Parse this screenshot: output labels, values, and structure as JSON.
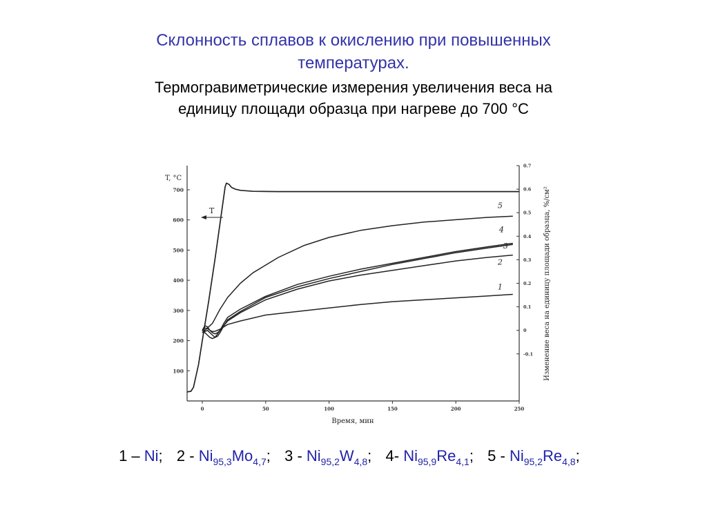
{
  "title": {
    "line1": "Склонность сплавов к окислению при повышенных",
    "line2": "температурах."
  },
  "subtitle": {
    "line1": "Термогравиметрические измерения увеличения веса на",
    "line2": "единицу площади образца при нагреве до 700 °С"
  },
  "chart_data": {
    "type": "line",
    "xlabel": "Время, мин",
    "ylabel_left": "T, °C",
    "ylabel_right": "Изменение веса на единицу площади образца, %/см²",
    "xlim": [
      -12,
      250
    ],
    "ylim_left": [
      0,
      780
    ],
    "ylim_right": [
      -0.3,
      0.7
    ],
    "x_ticks": [
      "0",
      "50",
      "100",
      "150",
      "200",
      "250"
    ],
    "y_left_ticks": [
      "100",
      "200",
      "300",
      "400",
      "500",
      "600",
      "700"
    ],
    "y_right_ticks": [
      "-0.1",
      "0",
      "0.1",
      "0.2",
      "0.3",
      "0.4",
      "0.5",
      "0.6",
      "0.7"
    ],
    "grid": false,
    "temperature_label": "T",
    "temperature": {
      "axis": "left",
      "x": [
        -12,
        -9,
        -7,
        -3,
        0,
        5,
        10,
        15,
        18,
        19,
        21,
        23,
        26,
        30,
        40,
        60,
        100,
        150,
        200,
        250
      ],
      "y": [
        30,
        32,
        45,
        120,
        200,
        330,
        470,
        620,
        710,
        722,
        718,
        708,
        702,
        698,
        695,
        694,
        694,
        694,
        694,
        694
      ]
    },
    "series": [
      {
        "name": "1",
        "axis": "right",
        "x": [
          0,
          2,
          4,
          6,
          8,
          10,
          14,
          20,
          30,
          50,
          75,
          100,
          125,
          150,
          175,
          200,
          225,
          245
        ],
        "y": [
          0.0,
          0.01,
          0.008,
          0.0,
          -0.005,
          -0.004,
          0.005,
          0.025,
          0.04,
          0.065,
          0.08,
          0.095,
          0.11,
          0.122,
          0.13,
          0.138,
          0.146,
          0.153
        ]
      },
      {
        "name": "2",
        "axis": "right",
        "x": [
          0,
          2,
          4,
          6,
          8,
          10,
          12,
          14,
          17,
          20,
          30,
          50,
          75,
          100,
          125,
          150,
          175,
          200,
          225,
          245
        ],
        "y": [
          0.0,
          0.02,
          0.015,
          0.0,
          -0.01,
          -0.015,
          -0.01,
          0.0,
          0.02,
          0.04,
          0.075,
          0.13,
          0.175,
          0.21,
          0.235,
          0.255,
          0.275,
          0.295,
          0.31,
          0.32
        ]
      },
      {
        "name": "3",
        "axis": "right",
        "x": [
          0,
          2,
          4,
          6,
          8,
          10,
          12,
          14,
          17,
          20,
          30,
          50,
          75,
          100,
          125,
          150,
          175,
          200,
          225,
          245
        ],
        "y": [
          -0.01,
          -0.005,
          0.0,
          -0.01,
          -0.02,
          -0.03,
          -0.025,
          -0.01,
          0.02,
          0.045,
          0.08,
          0.14,
          0.185,
          0.22,
          0.25,
          0.28,
          0.305,
          0.33,
          0.35,
          0.365
        ]
      },
      {
        "name": "4",
        "axis": "right",
        "x": [
          0,
          2,
          4,
          6,
          8,
          10,
          12,
          14,
          17,
          20,
          30,
          50,
          75,
          100,
          125,
          150,
          175,
          200,
          225,
          245
        ],
        "y": [
          0.0,
          -0.01,
          -0.02,
          -0.03,
          -0.035,
          -0.03,
          -0.015,
          0.0,
          0.03,
          0.055,
          0.09,
          0.145,
          0.195,
          0.23,
          0.26,
          0.285,
          0.31,
          0.335,
          0.355,
          0.37
        ]
      },
      {
        "name": "5",
        "axis": "right",
        "x": [
          0,
          2,
          4,
          6,
          8,
          10,
          14,
          20,
          30,
          40,
          60,
          80,
          100,
          125,
          150,
          175,
          200,
          225,
          245
        ],
        "y": [
          -0.01,
          0.0,
          0.01,
          0.02,
          0.03,
          0.05,
          0.09,
          0.14,
          0.2,
          0.245,
          0.31,
          0.36,
          0.395,
          0.425,
          0.445,
          0.46,
          0.47,
          0.48,
          0.485
        ]
      }
    ]
  },
  "legend": {
    "items": [
      {
        "prefix": "1 – ",
        "alloy": "Ni",
        "parts": []
      },
      {
        "prefix": "2 - ",
        "alloy": "",
        "parts": [
          [
            "Ni",
            "95,3"
          ],
          [
            "Mo",
            "4,7"
          ]
        ]
      },
      {
        "prefix": "3 -  ",
        "alloy": "",
        "parts": [
          [
            "Ni",
            "95,2"
          ],
          [
            "W",
            "4,8"
          ]
        ]
      },
      {
        "prefix": "4- ",
        "alloy": "",
        "parts": [
          [
            "Ni",
            "95,9"
          ],
          [
            "Re",
            "4,1"
          ]
        ]
      },
      {
        "prefix": "5 - ",
        "alloy": "",
        "parts": [
          [
            "Ni",
            "95,2"
          ],
          [
            "Re",
            "4,8"
          ]
        ]
      }
    ],
    "separator": ";"
  },
  "colors": {
    "title": "#3333aa",
    "alloy": "#2222aa",
    "lines": "#222222"
  }
}
